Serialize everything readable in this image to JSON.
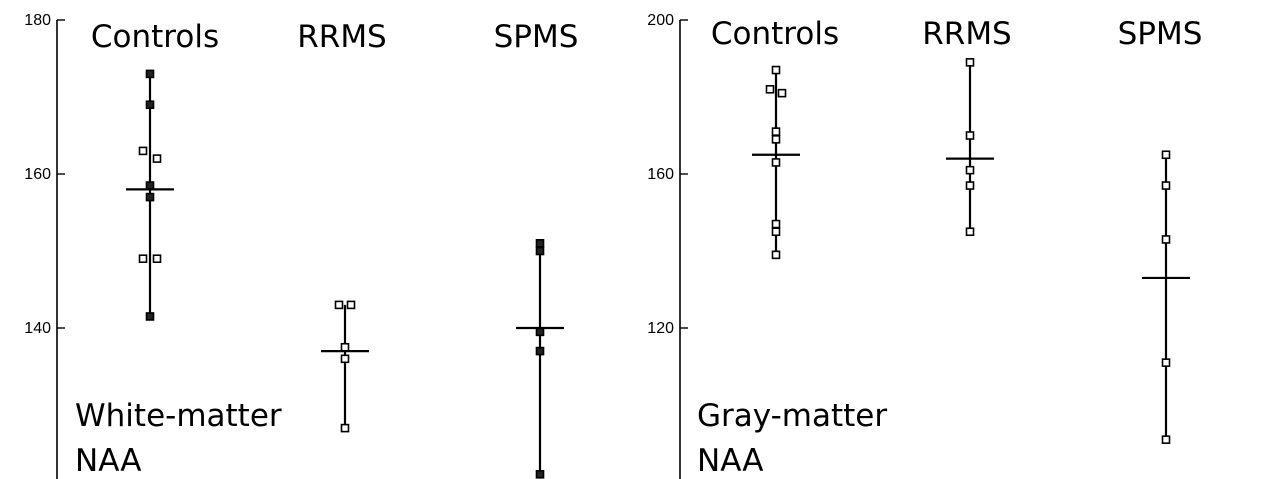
{
  "chart_data": [
    {
      "type": "scatter",
      "panel": "left",
      "ylim": [
        120,
        180
      ],
      "yticks": [
        "180",
        "160",
        "140"
      ],
      "ytick_values": [
        180,
        160,
        140
      ],
      "label_lines": [
        "White-matter",
        "NAA"
      ],
      "categories": [
        "Controls",
        "RRMS",
        "SPMS"
      ],
      "groups": [
        {
          "label": "Controls",
          "mean": 158,
          "points": [
            {
              "dx": 0,
              "y": 173,
              "filled": true
            },
            {
              "dx": 0,
              "y": 169,
              "filled": true
            },
            {
              "dx": -7,
              "y": 163,
              "filled": false
            },
            {
              "dx": 7,
              "y": 162,
              "filled": false
            },
            {
              "dx": 0,
              "y": 158.5,
              "filled": true
            },
            {
              "dx": 0,
              "y": 157,
              "filled": true
            },
            {
              "dx": -7,
              "y": 149,
              "filled": false
            },
            {
              "dx": 7,
              "y": 149,
              "filled": false
            },
            {
              "dx": 0,
              "y": 141.5,
              "filled": true
            }
          ]
        },
        {
          "label": "RRMS",
          "mean": 137,
          "points": [
            {
              "dx": -6,
              "y": 143,
              "filled": false
            },
            {
              "dx": 6,
              "y": 143,
              "filled": false
            },
            {
              "dx": 0,
              "y": 137.5,
              "filled": false
            },
            {
              "dx": 0,
              "y": 136,
              "filled": false
            },
            {
              "dx": 0,
              "y": 127,
              "filled": false
            }
          ]
        },
        {
          "label": "SPMS",
          "mean": 140,
          "points": [
            {
              "dx": 0,
              "y": 151,
              "filled": true
            },
            {
              "dx": 0,
              "y": 150,
              "filled": true
            },
            {
              "dx": 0,
              "y": 139.5,
              "filled": true
            },
            {
              "dx": 0,
              "y": 137,
              "filled": true
            },
            {
              "dx": 0,
              "y": 121,
              "filled": true
            }
          ]
        }
      ]
    },
    {
      "type": "scatter",
      "panel": "right",
      "ylim": [
        80,
        200
      ],
      "yticks": [
        "200",
        "160",
        "120"
      ],
      "ytick_values": [
        200,
        160,
        120
      ],
      "label_lines": [
        "Gray-matter",
        "NAA"
      ],
      "categories": [
        "Controls",
        "RRMS",
        "SPMS"
      ],
      "groups": [
        {
          "label": "Controls",
          "mean": 165,
          "points": [
            {
              "dx": 0,
              "y": 187,
              "filled": false
            },
            {
              "dx": -6,
              "y": 182,
              "filled": false
            },
            {
              "dx": 6,
              "y": 181,
              "filled": false
            },
            {
              "dx": 0,
              "y": 171,
              "filled": false
            },
            {
              "dx": 0,
              "y": 169,
              "filled": false
            },
            {
              "dx": 0,
              "y": 163,
              "filled": false
            },
            {
              "dx": 0,
              "y": 147,
              "filled": false
            },
            {
              "dx": 0,
              "y": 145,
              "filled": false
            },
            {
              "dx": 0,
              "y": 139,
              "filled": false
            }
          ]
        },
        {
          "label": "RRMS",
          "mean": 164,
          "points": [
            {
              "dx": 0,
              "y": 189,
              "filled": false
            },
            {
              "dx": 0,
              "y": 170,
              "filled": false
            },
            {
              "dx": 0,
              "y": 161,
              "filled": false
            },
            {
              "dx": 0,
              "y": 157,
              "filled": false
            },
            {
              "dx": 0,
              "y": 145,
              "filled": false
            }
          ]
        },
        {
          "label": "SPMS",
          "mean": 133,
          "points": [
            {
              "dx": 0,
              "y": 165,
              "filled": false
            },
            {
              "dx": 0,
              "y": 157,
              "filled": false
            },
            {
              "dx": 0,
              "y": 143,
              "filled": false
            },
            {
              "dx": 0,
              "y": 111,
              "filled": false
            },
            {
              "dx": 0,
              "y": 91,
              "filled": false
            }
          ]
        }
      ]
    }
  ]
}
